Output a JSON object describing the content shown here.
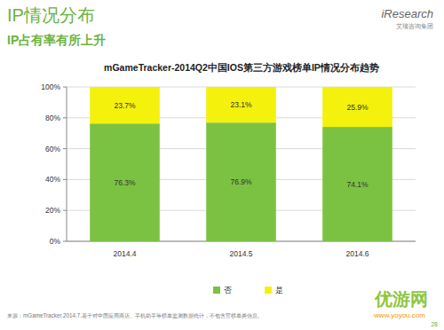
{
  "page": {
    "header": "IP情况分布",
    "subheader": "IP占有率有所上升",
    "logo": "iResearch",
    "logo_sub": "艾瑞咨询集团",
    "source": "来源：mGameTracker.2014.7.基于对中国应用商店、手机助手等榜单监测数据统计，不包含官榜单类信息。",
    "page_number": "28",
    "watermark": "优游网",
    "watermark_url": "www.yoyou.com"
  },
  "chart_data": {
    "type": "bar",
    "title": "mGameTracker-2014Q2中国IOS第三方游戏榜单IP情况分布趋势",
    "categories": [
      "2014.4",
      "2014.5",
      "2014.6"
    ],
    "series": [
      {
        "name": "否",
        "color": "#7cc242",
        "values": [
          76.3,
          76.9,
          74.1
        ],
        "value_labels": [
          "76.3%",
          "76.9%",
          "74.1%"
        ]
      },
      {
        "name": "是",
        "color": "#f4f10c",
        "values": [
          23.7,
          23.1,
          25.9
        ],
        "value_labels": [
          "23.7%",
          "23.1%",
          "25.9%"
        ]
      }
    ],
    "ylim": [
      0,
      100
    ],
    "yticks": [
      {
        "value": 0,
        "label": "0%"
      },
      {
        "value": 20,
        "label": "20%"
      },
      {
        "value": 40,
        "label": "40%"
      },
      {
        "value": 60,
        "label": "60%"
      },
      {
        "value": 80,
        "label": "80%"
      },
      {
        "value": 100,
        "label": "100%"
      }
    ],
    "stacked": true,
    "data_labels": true,
    "grid": true,
    "legend": "bottom"
  }
}
